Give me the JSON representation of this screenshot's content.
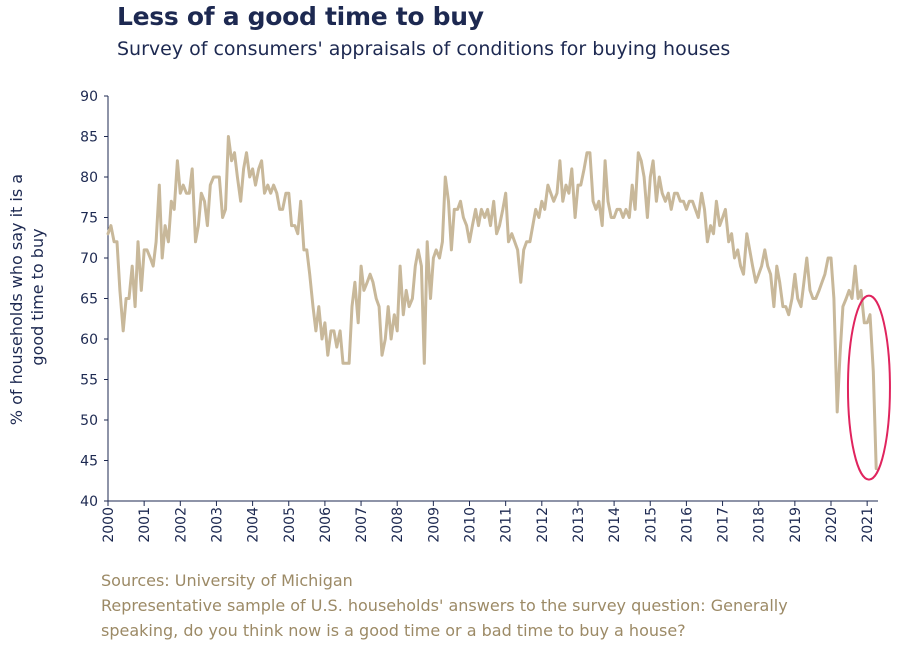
{
  "chart_data": {
    "type": "line",
    "title": "Less of a good time to buy",
    "subtitle": "Survey of consumers' appraisals of conditions for buying houses",
    "ylabel_lines": [
      "% of households who say it is a",
      "good time to buy"
    ],
    "xlabel": "",
    "ylim": [
      40,
      90
    ],
    "yticks": [
      "90",
      "85",
      "80",
      "75",
      "70",
      "65",
      "60",
      "55",
      "50",
      "45",
      "40"
    ],
    "xticks": [
      "2000",
      "2001",
      "2002",
      "2003",
      "2004",
      "2005",
      "2006",
      "2007",
      "2008",
      "2009",
      "2010",
      "2011",
      "2012",
      "2013",
      "2014",
      "2015",
      "2016",
      "2017",
      "2018",
      "2019",
      "2020",
      "2021"
    ],
    "xlim": [
      2000.0,
      2021.3
    ],
    "grid": false,
    "line_color": "#c8b89a",
    "highlight_color": "#e0245e",
    "highlight_around": [
      2021.05,
      54
    ],
    "series": [
      {
        "values": [
          [
            2000.0,
            73
          ],
          [
            2000.08,
            74
          ],
          [
            2000.17,
            72
          ],
          [
            2000.25,
            72
          ],
          [
            2000.33,
            66
          ],
          [
            2000.42,
            61
          ],
          [
            2000.5,
            65
          ],
          [
            2000.58,
            65
          ],
          [
            2000.67,
            69
          ],
          [
            2000.75,
            64
          ],
          [
            2000.83,
            72
          ],
          [
            2000.92,
            66
          ],
          [
            2001.0,
            71
          ],
          [
            2001.08,
            71
          ],
          [
            2001.17,
            70
          ],
          [
            2001.25,
            69
          ],
          [
            2001.33,
            72
          ],
          [
            2001.42,
            79
          ],
          [
            2001.5,
            70
          ],
          [
            2001.58,
            74
          ],
          [
            2001.67,
            72
          ],
          [
            2001.75,
            77
          ],
          [
            2001.83,
            76
          ],
          [
            2001.92,
            82
          ],
          [
            2002.0,
            78
          ],
          [
            2002.08,
            79
          ],
          [
            2002.17,
            78
          ],
          [
            2002.25,
            78
          ],
          [
            2002.33,
            81
          ],
          [
            2002.42,
            72
          ],
          [
            2002.5,
            74
          ],
          [
            2002.58,
            78
          ],
          [
            2002.67,
            77
          ],
          [
            2002.75,
            74
          ],
          [
            2002.83,
            79
          ],
          [
            2002.92,
            80
          ],
          [
            2003.0,
            80
          ],
          [
            2003.08,
            80
          ],
          [
            2003.17,
            75
          ],
          [
            2003.25,
            76
          ],
          [
            2003.33,
            85
          ],
          [
            2003.42,
            82
          ],
          [
            2003.5,
            83
          ],
          [
            2003.58,
            80
          ],
          [
            2003.67,
            77
          ],
          [
            2003.75,
            81
          ],
          [
            2003.83,
            83
          ],
          [
            2003.92,
            80
          ],
          [
            2004.0,
            81
          ],
          [
            2004.08,
            79
          ],
          [
            2004.17,
            81
          ],
          [
            2004.25,
            82
          ],
          [
            2004.33,
            78
          ],
          [
            2004.42,
            79
          ],
          [
            2004.5,
            78
          ],
          [
            2004.58,
            79
          ],
          [
            2004.67,
            78
          ],
          [
            2004.75,
            76
          ],
          [
            2004.83,
            76
          ],
          [
            2004.92,
            78
          ],
          [
            2005.0,
            78
          ],
          [
            2005.08,
            74
          ],
          [
            2005.17,
            74
          ],
          [
            2005.25,
            73
          ],
          [
            2005.33,
            77
          ],
          [
            2005.42,
            71
          ],
          [
            2005.5,
            71
          ],
          [
            2005.58,
            68
          ],
          [
            2005.67,
            64
          ],
          [
            2005.75,
            61
          ],
          [
            2005.83,
            64
          ],
          [
            2005.92,
            60
          ],
          [
            2006.0,
            62
          ],
          [
            2006.08,
            58
          ],
          [
            2006.17,
            61
          ],
          [
            2006.25,
            61
          ],
          [
            2006.33,
            59
          ],
          [
            2006.42,
            61
          ],
          [
            2006.5,
            57
          ],
          [
            2006.58,
            57
          ],
          [
            2006.67,
            57
          ],
          [
            2006.75,
            64
          ],
          [
            2006.83,
            67
          ],
          [
            2006.92,
            62
          ],
          [
            2007.0,
            69
          ],
          [
            2007.08,
            66
          ],
          [
            2007.17,
            67
          ],
          [
            2007.25,
            68
          ],
          [
            2007.33,
            67
          ],
          [
            2007.42,
            65
          ],
          [
            2007.5,
            64
          ],
          [
            2007.58,
            58
          ],
          [
            2007.67,
            60
          ],
          [
            2007.75,
            64
          ],
          [
            2007.83,
            60
          ],
          [
            2007.92,
            63
          ],
          [
            2008.0,
            61
          ],
          [
            2008.08,
            69
          ],
          [
            2008.17,
            63
          ],
          [
            2008.25,
            66
          ],
          [
            2008.33,
            64
          ],
          [
            2008.42,
            65
          ],
          [
            2008.5,
            69
          ],
          [
            2008.58,
            71
          ],
          [
            2008.67,
            69
          ],
          [
            2008.75,
            57
          ],
          [
            2008.83,
            72
          ],
          [
            2008.92,
            65
          ],
          [
            2009.0,
            70
          ],
          [
            2009.08,
            71
          ],
          [
            2009.17,
            70
          ],
          [
            2009.25,
            72
          ],
          [
            2009.33,
            80
          ],
          [
            2009.42,
            77
          ],
          [
            2009.5,
            71
          ],
          [
            2009.58,
            76
          ],
          [
            2009.67,
            76
          ],
          [
            2009.75,
            77
          ],
          [
            2009.83,
            75
          ],
          [
            2009.92,
            74
          ],
          [
            2010.0,
            72
          ],
          [
            2010.08,
            74
          ],
          [
            2010.17,
            76
          ],
          [
            2010.25,
            74
          ],
          [
            2010.33,
            76
          ],
          [
            2010.42,
            75
          ],
          [
            2010.5,
            76
          ],
          [
            2010.58,
            74
          ],
          [
            2010.67,
            77
          ],
          [
            2010.75,
            73
          ],
          [
            2010.83,
            74
          ],
          [
            2010.92,
            76
          ],
          [
            2011.0,
            78
          ],
          [
            2011.08,
            72
          ],
          [
            2011.17,
            73
          ],
          [
            2011.25,
            72
          ],
          [
            2011.33,
            71
          ],
          [
            2011.42,
            67
          ],
          [
            2011.5,
            71
          ],
          [
            2011.58,
            72
          ],
          [
            2011.67,
            72
          ],
          [
            2011.75,
            74
          ],
          [
            2011.83,
            76
          ],
          [
            2011.92,
            75
          ],
          [
            2012.0,
            77
          ],
          [
            2012.08,
            76
          ],
          [
            2012.17,
            79
          ],
          [
            2012.25,
            78
          ],
          [
            2012.33,
            77
          ],
          [
            2012.42,
            78
          ],
          [
            2012.5,
            82
          ],
          [
            2012.58,
            77
          ],
          [
            2012.67,
            79
          ],
          [
            2012.75,
            78
          ],
          [
            2012.83,
            81
          ],
          [
            2012.92,
            75
          ],
          [
            2013.0,
            79
          ],
          [
            2013.08,
            79
          ],
          [
            2013.17,
            81
          ],
          [
            2013.25,
            83
          ],
          [
            2013.33,
            83
          ],
          [
            2013.42,
            77
          ],
          [
            2013.5,
            76
          ],
          [
            2013.58,
            77
          ],
          [
            2013.67,
            74
          ],
          [
            2013.75,
            82
          ],
          [
            2013.83,
            77
          ],
          [
            2013.92,
            75
          ],
          [
            2014.0,
            75
          ],
          [
            2014.08,
            76
          ],
          [
            2014.17,
            76
          ],
          [
            2014.25,
            75
          ],
          [
            2014.33,
            76
          ],
          [
            2014.42,
            75
          ],
          [
            2014.5,
            79
          ],
          [
            2014.58,
            76
          ],
          [
            2014.67,
            83
          ],
          [
            2014.75,
            82
          ],
          [
            2014.83,
            80
          ],
          [
            2014.92,
            75
          ],
          [
            2015.0,
            80
          ],
          [
            2015.08,
            82
          ],
          [
            2015.17,
            77
          ],
          [
            2015.25,
            80
          ],
          [
            2015.33,
            78
          ],
          [
            2015.42,
            77
          ],
          [
            2015.5,
            78
          ],
          [
            2015.58,
            76
          ],
          [
            2015.67,
            78
          ],
          [
            2015.75,
            78
          ],
          [
            2015.83,
            77
          ],
          [
            2015.92,
            77
          ],
          [
            2016.0,
            76
          ],
          [
            2016.08,
            77
          ],
          [
            2016.17,
            77
          ],
          [
            2016.25,
            76
          ],
          [
            2016.33,
            75
          ],
          [
            2016.42,
            78
          ],
          [
            2016.5,
            76
          ],
          [
            2016.58,
            72
          ],
          [
            2016.67,
            74
          ],
          [
            2016.75,
            73
          ],
          [
            2016.83,
            77
          ],
          [
            2016.92,
            74
          ],
          [
            2017.0,
            75
          ],
          [
            2017.08,
            76
          ],
          [
            2017.17,
            72
          ],
          [
            2017.25,
            73
          ],
          [
            2017.33,
            70
          ],
          [
            2017.42,
            71
          ],
          [
            2017.5,
            69
          ],
          [
            2017.58,
            68
          ],
          [
            2017.67,
            73
          ],
          [
            2017.75,
            71
          ],
          [
            2017.83,
            69
          ],
          [
            2017.92,
            67
          ],
          [
            2018.0,
            68
          ],
          [
            2018.08,
            69
          ],
          [
            2018.17,
            71
          ],
          [
            2018.25,
            69
          ],
          [
            2018.33,
            68
          ],
          [
            2018.42,
            64
          ],
          [
            2018.5,
            69
          ],
          [
            2018.58,
            67
          ],
          [
            2018.67,
            64
          ],
          [
            2018.75,
            64
          ],
          [
            2018.83,
            63
          ],
          [
            2018.92,
            65
          ],
          [
            2019.0,
            68
          ],
          [
            2019.08,
            65
          ],
          [
            2019.17,
            64
          ],
          [
            2019.25,
            67
          ],
          [
            2019.33,
            70
          ],
          [
            2019.42,
            66
          ],
          [
            2019.5,
            65
          ],
          [
            2019.58,
            65
          ],
          [
            2019.67,
            66
          ],
          [
            2019.75,
            67
          ],
          [
            2019.83,
            68
          ],
          [
            2019.92,
            70
          ],
          [
            2020.0,
            70
          ],
          [
            2020.08,
            65
          ],
          [
            2020.17,
            51
          ],
          [
            2020.25,
            58
          ],
          [
            2020.33,
            64
          ],
          [
            2020.42,
            65
          ],
          [
            2020.5,
            66
          ],
          [
            2020.58,
            65
          ],
          [
            2020.67,
            69
          ],
          [
            2020.75,
            65
          ],
          [
            2020.83,
            66
          ],
          [
            2020.92,
            62
          ],
          [
            2021.0,
            62
          ],
          [
            2021.08,
            63
          ],
          [
            2021.17,
            56
          ],
          [
            2021.25,
            44
          ]
        ]
      }
    ]
  },
  "footer": {
    "source": "Sources: University of Michigan",
    "note_line1": "Representative sample of U.S. households' answers to the survey question: Generally",
    "note_line2": "speaking, do you think now is a good time or a bad time to buy a house?"
  }
}
